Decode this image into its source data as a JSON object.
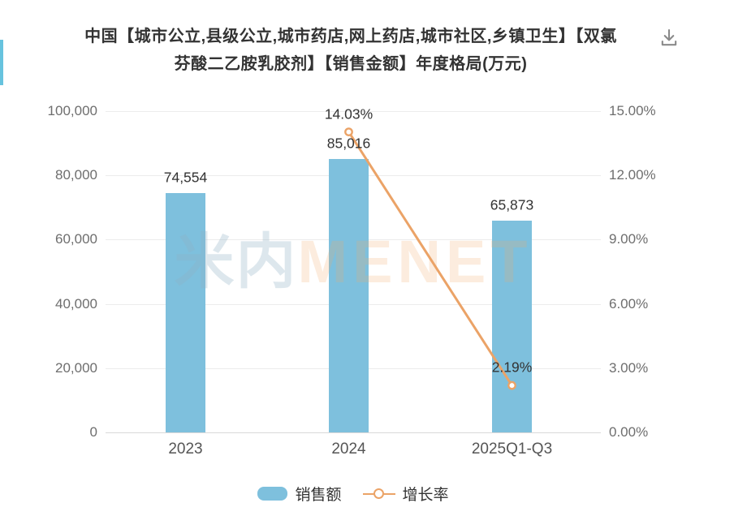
{
  "page": {
    "left_accent_color": "#67c3de",
    "background": "#ffffff"
  },
  "header": {
    "title_line1": "中国【城市公立,县级公立,城市药店,网上药店,城市社区,乡镇卫生】【双氯",
    "title_line2": "芬酸二乙胺乳胶剂】【销售金额】年度格局(万元)",
    "download_icon": "download-icon"
  },
  "watermark": {
    "part_cn": "米内",
    "part_en": "MENET"
  },
  "chart_data": {
    "type": "combo-bar-line",
    "title": "中国【城市公立,县级公立,城市药店,网上药店,城市社区,乡镇卫生】【双氯芬酸二乙胺乳胶剂】【销售金额】年度格局(万元)",
    "categories": [
      "2023",
      "2024",
      "2025Q1-Q3"
    ],
    "series": [
      {
        "name": "销售额",
        "type": "bar",
        "color": "#7ec0dd",
        "values": [
          74554,
          85016,
          65873
        ],
        "labels": [
          "74,554",
          "85,016",
          "65,873"
        ]
      },
      {
        "name": "增长率",
        "type": "line",
        "color": "#eba367",
        "values": [
          null,
          14.03,
          2.19
        ],
        "labels": [
          null,
          "14.03%",
          "2.19%"
        ]
      }
    ],
    "y_axis_left": {
      "ticks": [
        "100,000",
        "80,000",
        "60,000",
        "40,000",
        "20,000",
        "0"
      ],
      "values": [
        100000,
        80000,
        60000,
        40000,
        20000,
        0
      ],
      "min": 0,
      "max": 100000
    },
    "y_axis_right": {
      "ticks": [
        "15.00%",
        "12.00%",
        "9.00%",
        "6.00%",
        "3.00%",
        "0.00%"
      ],
      "values": [
        15,
        12,
        9,
        6,
        3,
        0
      ],
      "min": 0,
      "max": 15
    },
    "grid": true,
    "legend_position": "bottom",
    "legend": [
      {
        "label": "销售额",
        "type": "bar",
        "color": "#7ec0dd"
      },
      {
        "label": "增长率",
        "type": "line",
        "color": "#eba367"
      }
    ]
  }
}
